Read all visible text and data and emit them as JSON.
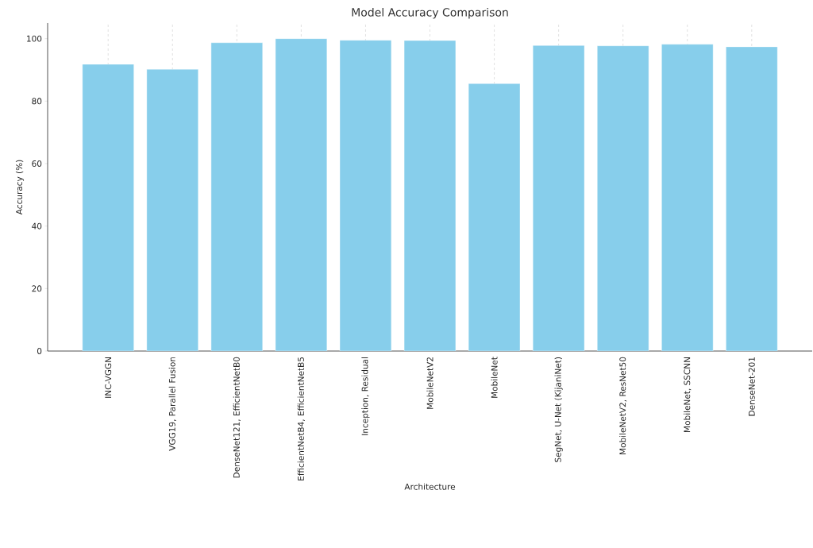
{
  "chart_data": {
    "type": "bar",
    "title": "Model Accuracy Comparison",
    "xlabel": "Architecture",
    "ylabel": "Accuracy (%)",
    "categories": [
      "INC-VGGN",
      "VGG19, Parallel Fusion",
      "DenseNet121, EfficientNetB0",
      "EfficientNetB4, EfficientNetB5",
      "Inception, Residual",
      "MobileNetV2",
      "MobileNet",
      "SegNet, U-Net (KijaniNet)",
      "MobileNetV2, ResNet50",
      "MobileNet, SSCNN",
      "DenseNet-201"
    ],
    "values": [
      91.8,
      90.2,
      98.7,
      100.0,
      99.5,
      99.4,
      85.6,
      97.8,
      97.7,
      98.2,
      97.4
    ],
    "color": "#87ceeb",
    "ylim": [
      0,
      105
    ],
    "yticks": [
      0,
      20,
      40,
      60,
      80,
      100
    ],
    "grid": "x"
  }
}
